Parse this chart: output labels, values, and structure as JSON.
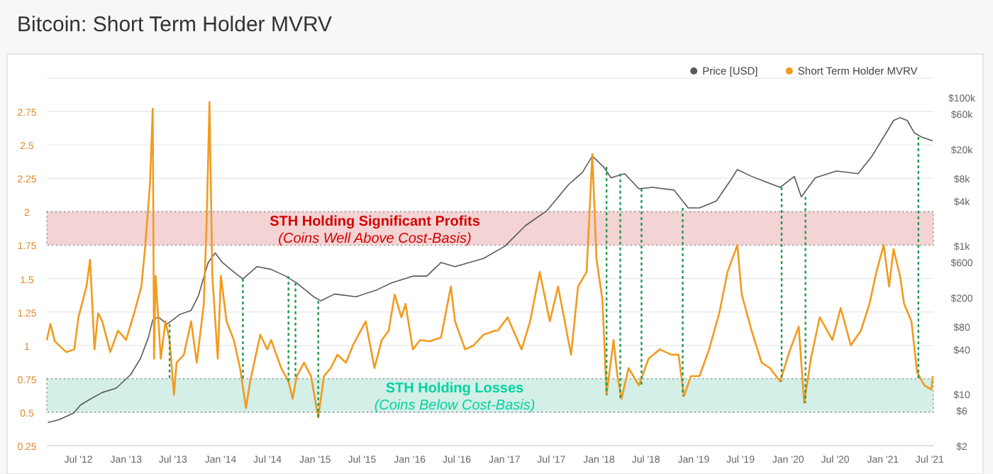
{
  "chart_data": {
    "type": "line",
    "title": "Bitcoin: Short Term Holder MVRV",
    "legend": "top right",
    "grid": "y",
    "log": "y2",
    "xlim": [
      "2012-03-01",
      "2021-07-15"
    ],
    "xticks": [
      {
        "value": "2012-07-01",
        "label": "Jul '12"
      },
      {
        "value": "2013-01-01",
        "label": "Jan '13"
      },
      {
        "value": "2013-07-01",
        "label": "Jul '13"
      },
      {
        "value": "2014-01-01",
        "label": "Jan '14"
      },
      {
        "value": "2014-07-01",
        "label": "Jul '14"
      },
      {
        "value": "2015-01-01",
        "label": "Jan '15"
      },
      {
        "value": "2015-07-01",
        "label": "Jul '15"
      },
      {
        "value": "2016-01-01",
        "label": "Jan '16"
      },
      {
        "value": "2016-07-01",
        "label": "Jul '16"
      },
      {
        "value": "2017-01-01",
        "label": "Jan '17"
      },
      {
        "value": "2017-07-01",
        "label": "Jul '17"
      },
      {
        "value": "2018-01-01",
        "label": "Jan '18"
      },
      {
        "value": "2018-07-01",
        "label": "Jul '18"
      },
      {
        "value": "2019-01-01",
        "label": "Jan '19"
      },
      {
        "value": "2019-07-01",
        "label": "Jul '19"
      },
      {
        "value": "2020-01-01",
        "label": "Jan '20"
      },
      {
        "value": "2020-07-01",
        "label": "Jul '20"
      },
      {
        "value": "2021-01-01",
        "label": "Jan '21"
      },
      {
        "value": "2021-07-01",
        "label": "Jul '21"
      }
    ],
    "ylim": [
      0.25,
      3.0
    ],
    "yticks": [
      0.25,
      0.5,
      0.75,
      1,
      1.25,
      1.5,
      1.75,
      2,
      2.25,
      2.5,
      2.75
    ],
    "y2lim": [
      2,
      180000
    ],
    "y2ticks": [
      {
        "value": 2,
        "label": "$2"
      },
      {
        "value": 6,
        "label": "$6"
      },
      {
        "value": 10,
        "label": "$10"
      },
      {
        "value": 40,
        "label": "$40"
      },
      {
        "value": 80,
        "label": "$80"
      },
      {
        "value": 200,
        "label": "$200"
      },
      {
        "value": 600,
        "label": "$600"
      },
      {
        "value": 1000,
        "label": "$1k"
      },
      {
        "value": 4000,
        "label": "$4k"
      },
      {
        "value": 8000,
        "label": "$8k"
      },
      {
        "value": 20000,
        "label": "$20k"
      },
      {
        "value": 60000,
        "label": "$60k"
      },
      {
        "value": 100000,
        "label": "$100k"
      }
    ],
    "bands": [
      {
        "axis": "y",
        "from": 1.75,
        "to": 2,
        "label": "STH Holding Significant Profits\n(Coins Well Above Cost-Basis)",
        "color": "#f3d3d3"
      },
      {
        "axis": "y",
        "from": 0.5,
        "to": 0.75,
        "label": "STH Holding Losses\n(Coins Below Cost-Basis)",
        "color": "#d3efe8"
      }
    ],
    "ref_lines": [
      {
        "axis": "x",
        "value": "2013-06-18",
        "color": "#1e9a4e",
        "line_style": "dotted"
      },
      {
        "axis": "x",
        "value": "2014-03-28",
        "color": "#1e9a4e",
        "line_style": "dotted"
      },
      {
        "axis": "x",
        "value": "2014-09-20",
        "color": "#1e9a4e",
        "line_style": "dotted"
      },
      {
        "axis": "x",
        "value": "2014-10-17",
        "color": "#1e9a4e",
        "line_style": "dotted"
      },
      {
        "axis": "x",
        "value": "2015-01-13",
        "color": "#1e9a4e",
        "line_style": "dotted"
      },
      {
        "axis": "x",
        "value": "2018-01-30",
        "color": "#1e9a4e",
        "line_style": "dotted"
      },
      {
        "axis": "x",
        "value": "2018-03-24",
        "color": "#1e9a4e",
        "line_style": "dotted"
      },
      {
        "axis": "x",
        "value": "2018-06-14",
        "color": "#1e9a4e",
        "line_style": "dotted"
      },
      {
        "axis": "x",
        "value": "2018-11-20",
        "color": "#1e9a4e",
        "line_style": "dotted"
      },
      {
        "axis": "x",
        "value": "2019-12-07",
        "color": "#1e9a4e",
        "line_style": "dotted"
      },
      {
        "axis": "x",
        "value": "2020-03-08",
        "color": "#1e9a4e",
        "line_style": "dotted"
      },
      {
        "axis": "x",
        "value": "2021-05-18",
        "color": "#1e9a4e",
        "line_style": "dotted"
      }
    ],
    "series": [
      {
        "name": "Price [USD]",
        "color": "#5a5a5a",
        "axis": "y2",
        "x": [
          "2012-03-05",
          "2012-04-19",
          "2012-06-13",
          "2012-07-10",
          "2012-08-17",
          "2012-10-01",
          "2012-11-24",
          "2013-01-18",
          "2013-02-26",
          "2013-03-28",
          "2013-04-14",
          "2013-05-06",
          "2013-06-08",
          "2013-06-30",
          "2013-07-27",
          "2013-09-09",
          "2013-10-06",
          "2013-11-14",
          "2013-12-11",
          "2014-01-08",
          "2014-02-21",
          "2014-03-28",
          "2014-05-22",
          "2014-07-15",
          "2014-09-09",
          "2014-10-22",
          "2014-12-26",
          "2015-01-23",
          "2015-03-17",
          "2015-06-08",
          "2015-08-28",
          "2015-10-22",
          "2016-01-13",
          "2016-03-07",
          "2016-05-01",
          "2016-06-24",
          "2016-10-12",
          "2017-01-03",
          "2017-03-23",
          "2017-06-14",
          "2017-09-05",
          "2017-10-29",
          "2017-12-06",
          "2018-01-19",
          "2018-02-16",
          "2018-04-10",
          "2018-06-04",
          "2018-07-27",
          "2018-10-18",
          "2018-12-11",
          "2019-01-24",
          "2019-03-30",
          "2019-05-23",
          "2019-06-19",
          "2019-08-13",
          "2019-11-04",
          "2019-12-01",
          "2020-01-25",
          "2020-02-21",
          "2020-04-15",
          "2020-07-06",
          "2020-09-27",
          "2020-11-20",
          "2021-01-14",
          "2021-02-11",
          "2021-03-08",
          "2021-04-05",
          "2021-05-02",
          "2021-05-29",
          "2021-07-12"
        ],
        "values": [
          4.1,
          4.5,
          5.5,
          7.1,
          8.5,
          10.4,
          11.9,
          18,
          30,
          57,
          99,
          108,
          87,
          99,
          117,
          133,
          203,
          588,
          790,
          588,
          437,
          353,
          518,
          475,
          385,
          311,
          203,
          179,
          221,
          203,
          252,
          311,
          385,
          385,
          588,
          518,
          667,
          977,
          1845,
          2940,
          6580,
          9640,
          16000,
          11400,
          8150,
          9250,
          5800,
          6050,
          5560,
          3200,
          3200,
          3960,
          7480,
          10500,
          8500,
          6580,
          6050,
          8500,
          4500,
          8150,
          10070,
          9250,
          16000,
          33000,
          48300,
          52600,
          48300,
          33000,
          29000,
          25600
        ]
      },
      {
        "name": "Short Term Holder MVRV",
        "color": "#f39a1e",
        "x": [
          "2012-03-01",
          "2012-03-15",
          "2012-04-01",
          "2012-05-15",
          "2012-06-15",
          "2012-07-01",
          "2012-08-01",
          "2012-08-15",
          "2012-09-01",
          "2012-09-15",
          "2012-10-01",
          "2012-11-01",
          "2012-12-01",
          "2012-12-15",
          "2013-01-01",
          "2013-02-01",
          "2013-03-01",
          "2013-03-15",
          "2013-04-03",
          "2013-04-14",
          "2013-04-19",
          "2013-04-25",
          "2013-05-15",
          "2013-06-02",
          "2013-06-18",
          "2013-07-05",
          "2013-07-15",
          "2013-08-12",
          "2013-09-09",
          "2013-10-01",
          "2013-10-28",
          "2013-11-08",
          "2013-11-19",
          "2013-11-30",
          "2013-12-21",
          "2014-01-02",
          "2014-01-24",
          "2014-02-21",
          "2014-03-17",
          "2014-04-09",
          "2014-04-25",
          "2014-06-03",
          "2014-06-30",
          "2014-07-15",
          "2014-08-23",
          "2014-09-20",
          "2014-10-06",
          "2014-10-22",
          "2014-11-19",
          "2014-12-16",
          "2015-01-13",
          "2015-02-04",
          "2015-03-02",
          "2015-03-28",
          "2015-04-30",
          "2015-05-27",
          "2015-07-15",
          "2015-08-18",
          "2015-09-15",
          "2015-10-12",
          "2015-11-04",
          "2015-11-30",
          "2015-12-16",
          "2016-01-13",
          "2016-02-10",
          "2016-03-18",
          "2016-05-01",
          "2016-06-08",
          "2016-06-24",
          "2016-08-02",
          "2016-09-04",
          "2016-10-12",
          "2016-11-25",
          "2016-12-06",
          "2017-01-13",
          "2017-03-08",
          "2017-04-10",
          "2017-05-17",
          "2017-06-25",
          "2017-07-27",
          "2017-09-15",
          "2017-10-12",
          "2017-11-14",
          "2017-12-06",
          "2017-12-22",
          "2018-01-14",
          "2018-01-30",
          "2018-02-26",
          "2018-03-13",
          "2018-03-29",
          "2018-04-25",
          "2018-06-04",
          "2018-07-11",
          "2018-08-24",
          "2018-10-07",
          "2018-11-04",
          "2018-11-25",
          "2018-12-22",
          "2019-01-24",
          "2019-03-02",
          "2019-04-10",
          "2019-05-12",
          "2019-06-19",
          "2019-07-06",
          "2019-08-13",
          "2019-09-21",
          "2019-10-23",
          "2019-12-01",
          "2020-01-09",
          "2020-02-11",
          "2020-03-03",
          "2020-03-29",
          "2020-05-02",
          "2020-06-20",
          "2020-07-22",
          "2020-08-30",
          "2020-10-08",
          "2020-11-10",
          "2020-12-07",
          "2021-01-04",
          "2021-01-25",
          "2021-02-11",
          "2021-03-08",
          "2021-03-24",
          "2021-04-21",
          "2021-05-13",
          "2021-06-10",
          "2021-07-07",
          "2021-07-12"
        ],
        "values": [
          1.04,
          1.16,
          1.03,
          0.95,
          0.97,
          1.21,
          1.44,
          1.64,
          0.97,
          1.24,
          1.18,
          0.95,
          1.11,
          1.08,
          1.04,
          1.24,
          1.44,
          1.72,
          2.2,
          2.77,
          0.9,
          1.52,
          0.9,
          1.18,
          1.04,
          0.63,
          0.87,
          0.93,
          1.18,
          0.87,
          1.31,
          1.92,
          2.82,
          1.52,
          0.9,
          1.52,
          1.18,
          1.04,
          0.83,
          0.53,
          0.73,
          1.08,
          0.97,
          1.04,
          0.83,
          0.73,
          0.6,
          0.77,
          0.87,
          0.77,
          0.46,
          0.77,
          0.83,
          0.93,
          0.87,
          1.0,
          1.18,
          0.83,
          1.04,
          1.11,
          1.38,
          1.21,
          1.31,
          0.97,
          1.04,
          1.03,
          1.06,
          1.44,
          1.18,
          0.97,
          1.0,
          1.08,
          1.11,
          1.11,
          1.21,
          0.97,
          1.18,
          1.55,
          1.18,
          1.44,
          0.93,
          1.44,
          1.55,
          2.43,
          1.65,
          1.34,
          0.63,
          1.04,
          0.77,
          0.6,
          0.83,
          0.7,
          0.9,
          0.97,
          0.93,
          0.93,
          0.62,
          0.77,
          0.77,
          0.97,
          1.24,
          1.55,
          1.75,
          1.38,
          1.11,
          0.87,
          0.83,
          0.73,
          0.97,
          1.14,
          0.57,
          0.9,
          1.21,
          1.04,
          1.28,
          1.0,
          1.11,
          1.31,
          1.55,
          1.75,
          1.44,
          1.72,
          1.52,
          1.31,
          1.18,
          0.8,
          0.7,
          0.67,
          0.77
        ]
      }
    ]
  }
}
